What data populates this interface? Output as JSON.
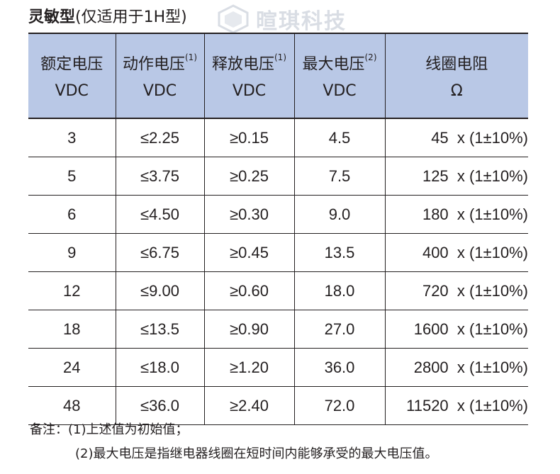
{
  "title": {
    "main": "灵敏型",
    "sub": "(仅适用于1H型)"
  },
  "watermark": "暄琪科技",
  "columns": [
    {
      "line1": "额定电压",
      "note": "",
      "line2": "VDC"
    },
    {
      "line1": "动作电压",
      "note": "(1)",
      "line2": "VDC"
    },
    {
      "line1": "释放电压",
      "note": "(1)",
      "line2": "VDC"
    },
    {
      "line1": "最大电压",
      "note": "(2)",
      "line2": "VDC"
    },
    {
      "line1": "线圈电阻",
      "note": "",
      "line2": "Ω"
    }
  ],
  "rows": [
    {
      "rated": "3",
      "pickup": "≤2.25",
      "release": "≥0.15",
      "max": "4.5",
      "resistance": "45  x (1±10%)"
    },
    {
      "rated": "5",
      "pickup": "≤3.75",
      "release": "≥0.25",
      "max": "7.5",
      "resistance": "125  x (1±10%)"
    },
    {
      "rated": "6",
      "pickup": "≤4.50",
      "release": "≥0.30",
      "max": "9.0",
      "resistance": "180  x (1±10%)"
    },
    {
      "rated": "9",
      "pickup": "≤6.75",
      "release": "≥0.45",
      "max": "13.5",
      "resistance": "400  x (1±10%)"
    },
    {
      "rated": "12",
      "pickup": "≤9.00",
      "release": "≥0.60",
      "max": "18.0",
      "resistance": "720  x (1±10%)"
    },
    {
      "rated": "18",
      "pickup": "≤13.5",
      "release": "≥0.90",
      "max": "27.0",
      "resistance": "1600  x (1±10%)"
    },
    {
      "rated": "24",
      "pickup": "≤18.0",
      "release": "≥1.20",
      "max": "36.0",
      "resistance": "2800  x (1±10%)"
    },
    {
      "rated": "48",
      "pickup": "≤36.0",
      "release": "≥2.40",
      "max": "72.0",
      "resistance": "11520  x (1±10%)"
    }
  ],
  "notes": {
    "label": "备注：",
    "note1": "(1)上述值为初始值；",
    "note2": "(2)最大电压是指继电器线圈在短时间内能够承受的最大电压值。"
  },
  "colors": {
    "header_bg": "#b9c8e6",
    "text": "#231f20",
    "watermark": "#d9dde4"
  }
}
